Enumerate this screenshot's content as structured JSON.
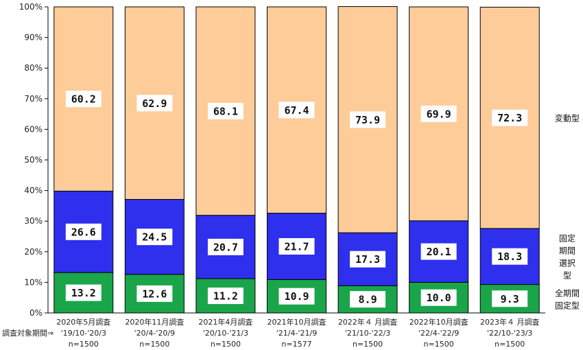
{
  "chart_data": {
    "type": "bar",
    "stacked": true,
    "percent": true,
    "categories": [
      [
        "2020年5月調査",
        "'19/10-'20/3",
        "n=1500"
      ],
      [
        "2020年11月調査",
        "'20/4-'20/9",
        "n=1500"
      ],
      [
        "2021年4月調査",
        "'20/10-'21/3",
        "n=1500"
      ],
      [
        "2021年10月調査",
        "'21/4-'21/9",
        "n=1577"
      ],
      [
        "2022年４ 月調査",
        "'21/10-'22/3",
        "n=1500"
      ],
      [
        "2022年10月調査",
        "'22/4-'22/9",
        "n=1500"
      ],
      [
        "2023年４ 月調査",
        "'22/10-'23/3",
        "n=1500"
      ]
    ],
    "category_note": "調査対象期間⇒",
    "series": [
      {
        "name": "全期間固定型",
        "label_lines": [
          "全期間",
          "固定型"
        ],
        "color": "#1aa54b",
        "values": [
          13.2,
          12.6,
          11.2,
          10.9,
          8.9,
          10.0,
          9.3
        ],
        "labels": [
          "13.2",
          "12.6",
          "11.2",
          "10.9",
          "8.9",
          "10.0",
          "9.3"
        ]
      },
      {
        "name": "固定期間選択型",
        "label_lines": [
          "固定",
          "期間",
          "選択",
          "型"
        ],
        "color": "#2f2fee",
        "values": [
          26.6,
          24.5,
          20.7,
          21.7,
          17.3,
          20.1,
          18.3
        ],
        "labels": [
          "26.6",
          "24.5",
          "20.7",
          "21.7",
          "17.3",
          "20.1",
          "18.3"
        ]
      },
      {
        "name": "変動型",
        "label_lines": [
          "変動型"
        ],
        "color": "#fdcc99",
        "values": [
          60.2,
          62.9,
          68.1,
          67.4,
          73.9,
          69.9,
          72.3
        ],
        "labels": [
          "60.2",
          "62.9",
          "68.1",
          "67.4",
          "73.9",
          "69.9",
          "72.3"
        ]
      }
    ],
    "yticks": [
      "0%",
      "10%",
      "20%",
      "30%",
      "40%",
      "50%",
      "60%",
      "70%",
      "80%",
      "90%",
      "100%"
    ],
    "ylim": [
      0,
      100
    ],
    "grid": false,
    "legend": "right"
  }
}
